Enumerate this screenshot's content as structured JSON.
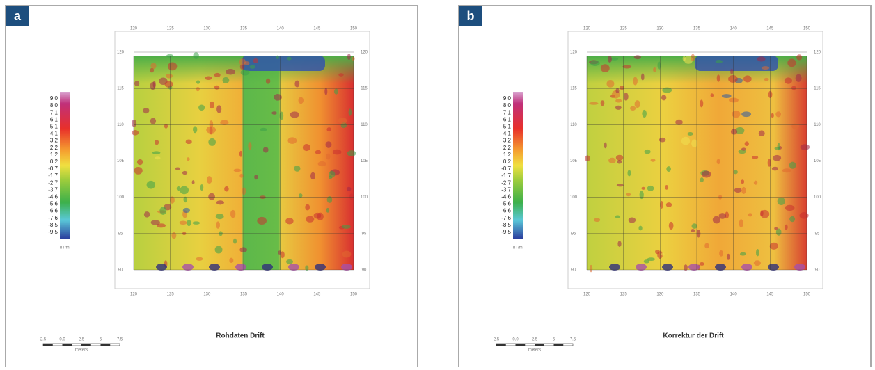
{
  "panels": [
    {
      "label": "a",
      "title": "Rohdaten Drift",
      "colorbar": {
        "labels": [
          "9.0",
          "8.0",
          "7.1",
          "6.1",
          "5.1",
          "4.1",
          "3.2",
          "2.2",
          "1.2",
          "0.2",
          "-0.7",
          "-1.7",
          "-2.7",
          "-3.7",
          "-4.6",
          "-5.6",
          "-6.6",
          "-7.6",
          "-8.5",
          "-9.5"
        ],
        "unit": "nT/m"
      },
      "x_ticks": [
        "120",
        "125",
        "130",
        "135",
        "140",
        "145",
        "150"
      ],
      "y_ticks": [
        "120",
        "115",
        "110",
        "105",
        "100",
        "95",
        "90"
      ],
      "scale_bar": {
        "labels": [
          "2.5",
          "0.0",
          "2.5",
          "5",
          "7.5"
        ],
        "unit": "meters"
      }
    },
    {
      "label": "b",
      "title": "Korrektur der Drift",
      "colorbar": {
        "labels": [
          "9.0",
          "8.0",
          "7.1",
          "6.1",
          "5.1",
          "4.1",
          "3.2",
          "2.2",
          "1.2",
          "0.2",
          "-0.7",
          "-1.7",
          "-2.7",
          "-3.7",
          "-4.6",
          "-5.6",
          "-6.6",
          "-7.6",
          "-8.5",
          "-9.5"
        ],
        "unit": "nT/m"
      },
      "x_ticks": [
        "120",
        "125",
        "130",
        "135",
        "140",
        "145",
        "150"
      ],
      "y_ticks": [
        "120",
        "115",
        "110",
        "105",
        "100",
        "95",
        "90"
      ],
      "scale_bar": {
        "labels": [
          "2.5",
          "0.0",
          "2.5",
          "5",
          "7.5"
        ],
        "unit": "meters"
      }
    }
  ]
}
